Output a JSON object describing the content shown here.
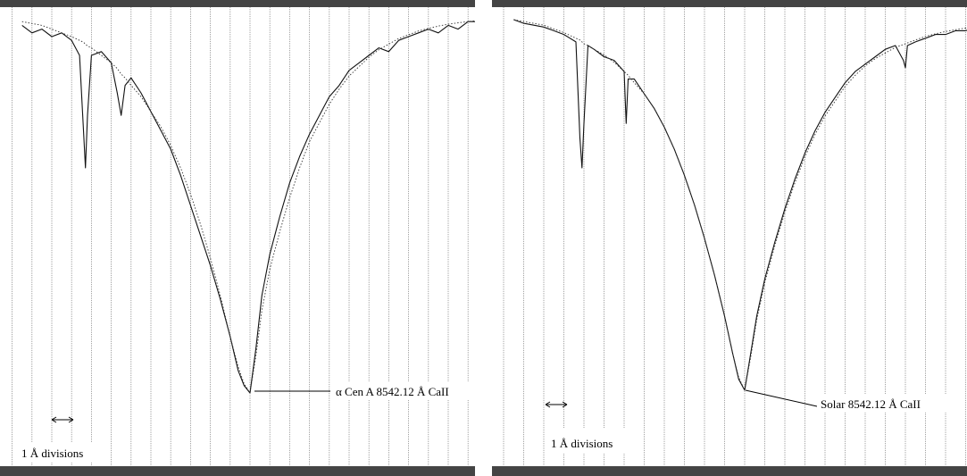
{
  "chart_data": [
    {
      "type": "line",
      "title": "",
      "xlabel": "",
      "ylabel": "",
      "grid": true,
      "grid_step_angstrom": 1,
      "scale_label": "1 Å divisions",
      "annotation": "α Cen A 8542.12 Å CaII",
      "line_center_angstrom": 8542.12,
      "x_offsets_angstrom": [
        -11.5,
        -11,
        -10.5,
        -10,
        -9.5,
        -9,
        -8.6,
        -8.4,
        -8.3,
        -8.2,
        -8,
        -7.5,
        -7,
        -6.7,
        -6.5,
        -6.3,
        -6,
        -5.5,
        -5,
        -4.5,
        -4,
        -3.5,
        -3,
        -2.5,
        -2,
        -1.5,
        -1,
        -0.6,
        -0.3,
        0,
        0.3,
        0.6,
        1,
        1.5,
        2,
        2.5,
        3,
        3.5,
        4,
        4.5,
        5,
        5.5,
        6,
        6.5,
        7,
        7.5,
        8,
        8.5,
        9,
        9.5,
        10,
        10.5,
        11,
        11.5
      ],
      "series": [
        {
          "values": [
            0.98,
            0.96,
            0.97,
            0.95,
            0.96,
            0.94,
            0.9,
            0.7,
            0.6,
            0.74,
            0.9,
            0.91,
            0.88,
            0.8,
            0.74,
            0.82,
            0.84,
            0.8,
            0.75,
            0.7,
            0.65,
            0.58,
            0.5,
            0.42,
            0.34,
            0.25,
            0.15,
            0.06,
            0.02,
            0.0,
            0.12,
            0.26,
            0.37,
            0.47,
            0.56,
            0.63,
            0.69,
            0.74,
            0.79,
            0.82,
            0.86,
            0.88,
            0.9,
            0.92,
            0.91,
            0.94,
            0.95,
            0.96,
            0.97,
            0.96,
            0.98,
            0.97,
            0.99,
            0.99
          ]
        },
        {
          "values": [
            0.99,
            0.985,
            0.98,
            0.97,
            0.96,
            0.95,
            0.94,
            0.935,
            0.93,
            0.925,
            0.92,
            0.9,
            0.88,
            0.865,
            0.85,
            0.84,
            0.82,
            0.79,
            0.75,
            0.71,
            0.66,
            0.6,
            0.53,
            0.45,
            0.36,
            0.26,
            0.15,
            0.07,
            0.025,
            0.0,
            0.1,
            0.22,
            0.33,
            0.43,
            0.52,
            0.6,
            0.67,
            0.72,
            0.77,
            0.81,
            0.845,
            0.87,
            0.895,
            0.915,
            0.93,
            0.945,
            0.955,
            0.965,
            0.972,
            0.978,
            0.983,
            0.987,
            0.99,
            0.993
          ]
        }
      ]
    },
    {
      "type": "line",
      "title": "",
      "xlabel": "",
      "ylabel": "",
      "grid": true,
      "grid_step_angstrom": 1,
      "scale_label": "1 Å divisions",
      "annotation": "Solar 8542.12 Å CaII",
      "line_center_angstrom": 8542.12,
      "x_offsets_angstrom": [
        -11.5,
        -11,
        -10.5,
        -10,
        -9.5,
        -9,
        -8.4,
        -8.2,
        -8.1,
        -8,
        -7.8,
        -7.5,
        -7,
        -6.5,
        -6,
        -5.9,
        -5.8,
        -5.5,
        -5,
        -4.5,
        -4,
        -3.5,
        -3,
        -2.5,
        -2,
        -1.5,
        -1,
        -0.6,
        -0.3,
        0,
        0.3,
        0.6,
        1,
        1.5,
        2,
        2.5,
        3,
        3.5,
        4,
        4.5,
        5,
        5.5,
        6,
        6.5,
        7,
        7.5,
        7.9,
        8,
        8.1,
        8.5,
        9,
        9.5,
        10,
        10.5,
        11,
        11.5
      ],
      "series": [
        {
          "values": [
            1.0,
            0.99,
            0.985,
            0.98,
            0.97,
            0.96,
            0.94,
            0.68,
            0.6,
            0.72,
            0.93,
            0.92,
            0.9,
            0.89,
            0.86,
            0.72,
            0.84,
            0.84,
            0.8,
            0.76,
            0.71,
            0.65,
            0.58,
            0.5,
            0.41,
            0.31,
            0.2,
            0.1,
            0.03,
            0.0,
            0.1,
            0.2,
            0.3,
            0.4,
            0.49,
            0.57,
            0.64,
            0.7,
            0.75,
            0.79,
            0.83,
            0.86,
            0.88,
            0.9,
            0.92,
            0.93,
            0.89,
            0.87,
            0.93,
            0.94,
            0.95,
            0.96,
            0.96,
            0.97,
            0.97,
            0.98
          ]
        },
        {
          "values": [
            1.0,
            0.995,
            0.99,
            0.985,
            0.975,
            0.965,
            0.95,
            0.945,
            0.94,
            0.935,
            0.93,
            0.92,
            0.905,
            0.885,
            0.86,
            0.855,
            0.85,
            0.83,
            0.8,
            0.76,
            0.71,
            0.65,
            0.58,
            0.5,
            0.41,
            0.31,
            0.2,
            0.1,
            0.035,
            0.0,
            0.09,
            0.19,
            0.29,
            0.39,
            0.48,
            0.56,
            0.63,
            0.69,
            0.74,
            0.78,
            0.82,
            0.85,
            0.875,
            0.895,
            0.91,
            0.925,
            0.933,
            0.935,
            0.937,
            0.945,
            0.955,
            0.962,
            0.968,
            0.973,
            0.977,
            0.98
          ]
        }
      ]
    }
  ]
}
